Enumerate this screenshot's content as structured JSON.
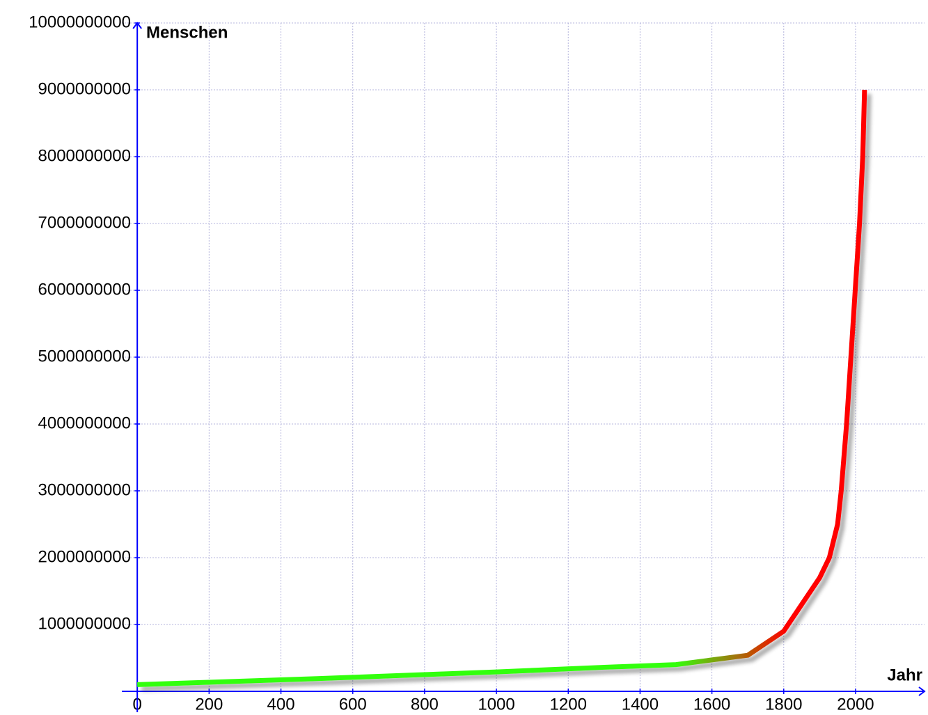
{
  "chart_data": {
    "type": "line",
    "x_label": "Jahr",
    "y_label": "Menschen",
    "x": [
      0,
      500,
      1000,
      1300,
      1500,
      1600,
      1700,
      1800,
      1900,
      1927,
      1950,
      1960,
      1975,
      1987,
      1999,
      2011,
      2020,
      2025
    ],
    "series": [
      {
        "color": "#ff0000",
        "gradient_from": "#33ff11",
        "values": [
          100000000,
          190000000,
          290000000,
          360000000,
          400000000,
          470000000,
          540000000,
          900000000,
          1700000000,
          2000000000,
          2500000000,
          3000000000,
          4000000000,
          5000000000,
          6000000000,
          7000000000,
          8000000000,
          9000000000
        ]
      }
    ],
    "xlim": [
      -43,
      2192
    ],
    "ylim": [
      0,
      10000000000
    ],
    "xticks": [
      0,
      200,
      400,
      600,
      800,
      1000,
      1200,
      1400,
      1600,
      1800,
      2000
    ],
    "yticks": [
      1000000000,
      2000000000,
      3000000000,
      4000000000,
      5000000000,
      6000000000,
      7000000000,
      8000000000,
      9000000000,
      10000000000
    ],
    "grid": true
  }
}
